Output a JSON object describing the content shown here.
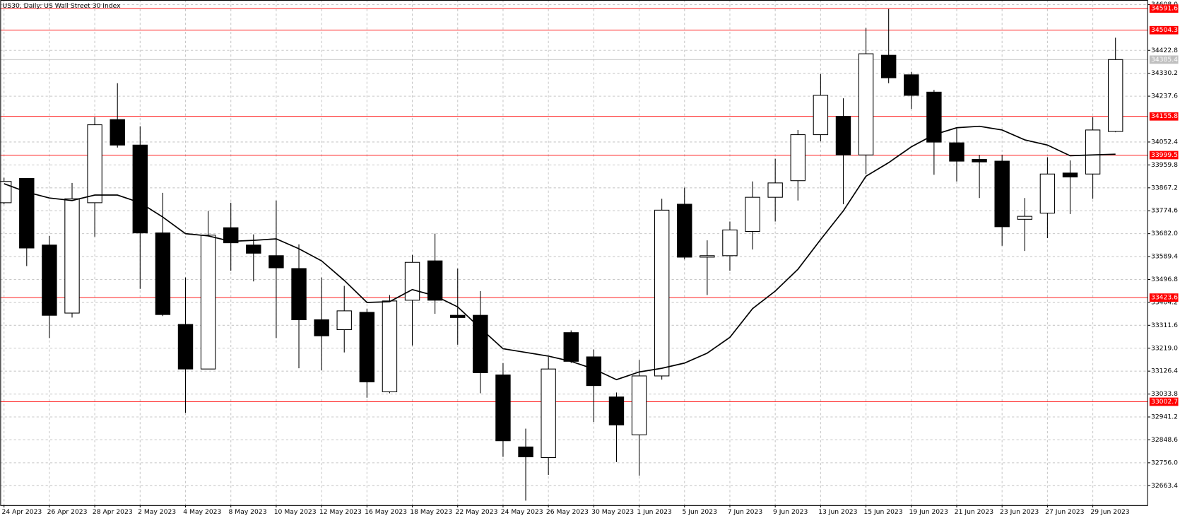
{
  "chart_data": {
    "type": "candlestick",
    "title": "US30, Daily:  US Wall Street 30 Index",
    "categories": [
      "24 Apr 2023",
      null,
      "26 Apr 2023",
      null,
      "28 Apr 2023",
      null,
      "2 May 2023",
      null,
      "4 May 2023",
      null,
      "8 May 2023",
      null,
      "10 May 2023",
      null,
      "12 May 2023",
      null,
      "16 May 2023",
      null,
      "18 May 2023",
      null,
      "22 May 2023",
      null,
      "24 May 2023",
      null,
      "26 May 2023",
      null,
      "30 May 2023",
      null,
      "1 Jun 2023",
      null,
      "5 Jun 2023",
      null,
      "7 Jun 2023",
      null,
      "9 Jun 2023",
      null,
      "13 Jun 2023",
      null,
      "15 Jun 2023",
      null,
      "19 Jun 2023",
      null,
      "21 Jun 2023",
      null,
      "23 Jun 2023",
      null,
      "27 Jun 2023",
      null,
      "29 Jun 2023",
      null
    ],
    "open": [
      33807,
      33905,
      33636,
      33361,
      33807,
      34143,
      34040,
      33685,
      33315,
      33135,
      33706,
      33636,
      33593,
      33541,
      33334,
      33294,
      33364,
      33043,
      33413,
      33572,
      33352,
      33352,
      33111,
      32820,
      32777,
      33282,
      33184,
      33022,
      32869,
      33107,
      33801,
      33587,
      33593,
      33691,
      33829,
      33896,
      34082,
      34156,
      34000,
      34403,
      34324,
      34254,
      34049,
      33982,
      33975,
      33740,
      33765,
      33927,
      33923,
      34095
    ],
    "high": [
      33908,
      33905,
      33673,
      33887,
      34153,
      34290,
      34116,
      33847,
      33505,
      33774,
      33807,
      33679,
      33816,
      33639,
      33505,
      33471,
      33379,
      33434,
      33596,
      33682,
      33541,
      33450,
      33159,
      32894,
      33184,
      33291,
      33214,
      33040,
      33172,
      33823,
      33868,
      33655,
      33731,
      33893,
      33985,
      34101,
      34327,
      34229,
      34513,
      34590,
      34336,
      34263,
      34107,
      34000,
      34000,
      33826,
      33991,
      33978,
      34153,
      34474
    ],
    "low": [
      33801,
      33551,
      33260,
      33343,
      33670,
      34030,
      33459,
      33349,
      32958,
      33135,
      33532,
      33489,
      33260,
      33138,
      33129,
      33202,
      33019,
      33037,
      33230,
      33358,
      33233,
      33037,
      32780,
      32603,
      32707,
      33159,
      32921,
      32759,
      32704,
      33092,
      33578,
      33434,
      33532,
      33618,
      33731,
      33816,
      34055,
      33801,
      33923,
      34290,
      34186,
      33920,
      33893,
      33826,
      33633,
      33612,
      33664,
      33761,
      33823,
      34092
    ],
    "close": [
      33893,
      33624,
      33352,
      33823,
      34122,
      34040,
      33685,
      33355,
      33135,
      33676,
      33645,
      33603,
      33544,
      33334,
      33269,
      33370,
      33083,
      33410,
      33566,
      33413,
      33343,
      33120,
      32845,
      32780,
      33135,
      33166,
      33068,
      32909,
      33107,
      33777,
      33587,
      33593,
      33697,
      33829,
      33887,
      34082,
      34241,
      34000,
      34409,
      34312,
      34241,
      34052,
      33975,
      33972,
      33710,
      33752,
      33923,
      33911,
      34101,
      34385.4
    ],
    "ma": [
      33884,
      33850,
      33826,
      33816,
      33838,
      33838,
      33807,
      33749,
      33682,
      33673,
      33651,
      33655,
      33661,
      33621,
      33572,
      33493,
      33404,
      33407,
      33456,
      33431,
      33386,
      33300,
      33217,
      33202,
      33187,
      33166,
      33135,
      33092,
      33123,
      33138,
      33159,
      33199,
      33263,
      33379,
      33450,
      33538,
      33658,
      33774,
      33914,
      33969,
      34033,
      34082,
      34110,
      34116,
      34101,
      34061,
      34040,
      33997,
      34000,
      34003
    ],
    "up_color": "#ffffff",
    "down_color": "#000000",
    "ma_color": "#000000",
    "levels": [
      34591.6,
      34504.3,
      34155.8,
      33999.5,
      33423.6,
      33002.7
    ],
    "level_color": "#ff0000",
    "current_price": 34385.4,
    "current_price_color": "#c0c0c0",
    "ylim": [
      32584.8,
      34626.3
    ],
    "yticks": [
      {
        "value": 34608,
        "label": "34608.0"
      },
      34422.8,
      34330.2,
      34237.6,
      34052.4,
      33959.8,
      33867.2,
      33774.6,
      {
        "value": 33682,
        "label": "33682.0"
      },
      33589.4,
      33496.8,
      33404.2,
      33311.6,
      {
        "value": 33219,
        "label": "33219.0"
      },
      33126.4,
      33033.8,
      32941.2,
      32848.6,
      {
        "value": 32756,
        "label": "32756.0"
      },
      32663.4
    ],
    "grid": true
  }
}
